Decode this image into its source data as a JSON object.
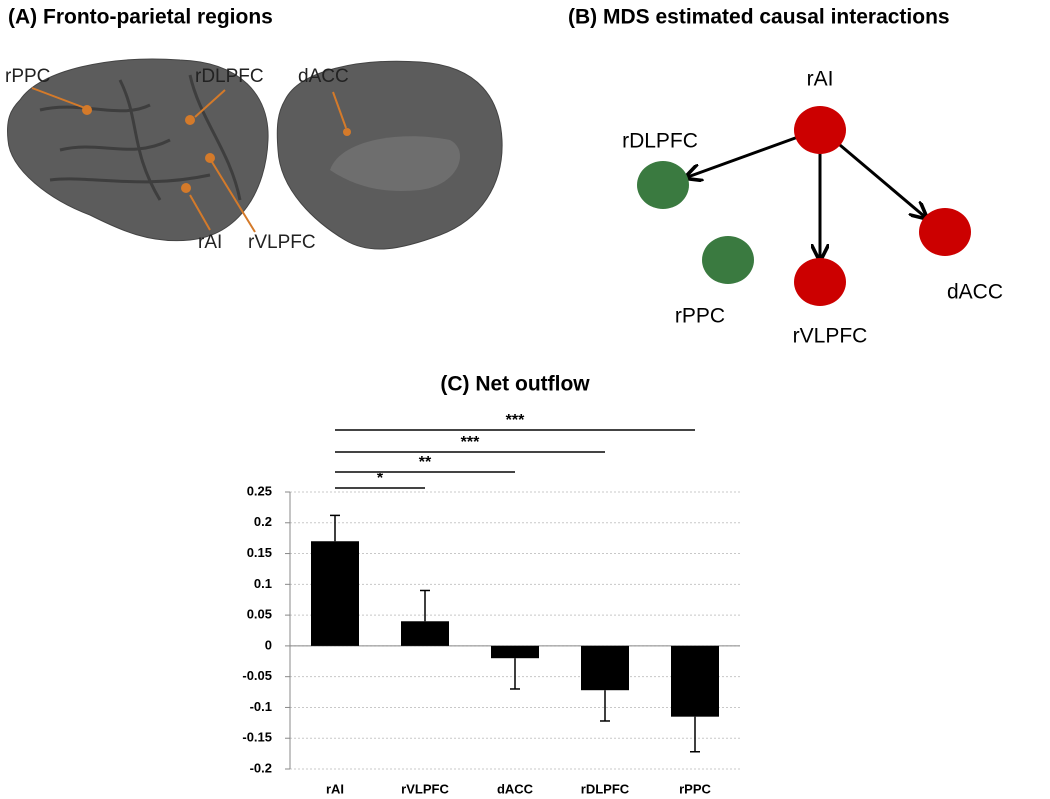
{
  "panel_a": {
    "title": "(A) Fronto-parietal regions",
    "labels": [
      "rPPC",
      "rDLPFC",
      "dACC",
      "rAI",
      "rVLPFC"
    ]
  },
  "panel_b": {
    "title": "(B) MDS estimated causal interactions",
    "nodes": [
      {
        "label": "rAI",
        "color": "#cc0000"
      },
      {
        "label": "rDLPFC",
        "color": "#3a7a40"
      },
      {
        "label": "dACC",
        "color": "#cc0000"
      },
      {
        "label": "rVLPFC",
        "color": "#cc0000"
      },
      {
        "label": "rPPC",
        "color": "#3a7a40"
      }
    ],
    "edges": [
      {
        "from": 0,
        "to": 1
      },
      {
        "from": 0,
        "to": 3
      },
      {
        "from": 0,
        "to": 2
      }
    ]
  },
  "chart_data": {
    "type": "bar",
    "title": "(C) Net outflow",
    "categories": [
      "rAI",
      "rVLPFC",
      "dACC",
      "rDLPFC",
      "rPPC"
    ],
    "values": [
      0.17,
      0.04,
      -0.02,
      -0.072,
      -0.115
    ],
    "errors": [
      0.042,
      0.05,
      0.05,
      0.05,
      0.057
    ],
    "color": "#000000",
    "ylim": [
      -0.2,
      0.25
    ],
    "yticks": [
      -0.2,
      -0.15,
      -0.1,
      -0.05,
      0,
      0.05,
      0.1,
      0.15,
      0.2,
      0.25
    ],
    "grid": true,
    "significance": [
      {
        "from": 0,
        "to": 1,
        "label": "*"
      },
      {
        "from": 0,
        "to": 2,
        "label": "**"
      },
      {
        "from": 0,
        "to": 3,
        "label": "***"
      },
      {
        "from": 0,
        "to": 4,
        "label": "***"
      }
    ]
  }
}
